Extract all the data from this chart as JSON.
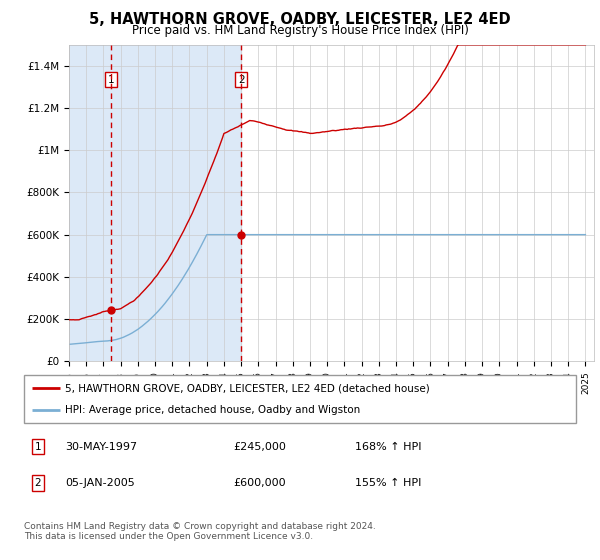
{
  "title": "5, HAWTHORN GROVE, OADBY, LEICESTER, LE2 4ED",
  "subtitle": "Price paid vs. HM Land Registry's House Price Index (HPI)",
  "legend_line1": "5, HAWTHORN GROVE, OADBY, LEICESTER, LE2 4ED (detached house)",
  "legend_line2": "HPI: Average price, detached house, Oadby and Wigston",
  "footnote": "Contains HM Land Registry data © Crown copyright and database right 2024.\nThis data is licensed under the Open Government Licence v3.0.",
  "transaction1_date": "30-MAY-1997",
  "transaction1_price": "£245,000",
  "transaction1_hpi": "168% ↑ HPI",
  "transaction2_date": "05-JAN-2005",
  "transaction2_price": "£600,000",
  "transaction2_hpi": "155% ↑ HPI",
  "ylim": [
    0,
    1500000
  ],
  "yticks": [
    0,
    200000,
    400000,
    600000,
    800000,
    1000000,
    1200000,
    1400000
  ],
  "ytick_labels": [
    "£0",
    "£200K",
    "£400K",
    "£600K",
    "£800K",
    "£1M",
    "£1.2M",
    "£1.4M"
  ],
  "hpi_line_color": "#7bafd4",
  "price_line_color": "#cc0000",
  "dot_color": "#cc0000",
  "vline_color": "#cc0000",
  "shade_color": "#dce9f7",
  "xmin": 1995,
  "xmax": 2025.5,
  "transaction1_x": 1997.42,
  "transaction1_y": 245000,
  "transaction2_x": 2005.01,
  "transaction2_y": 600000
}
